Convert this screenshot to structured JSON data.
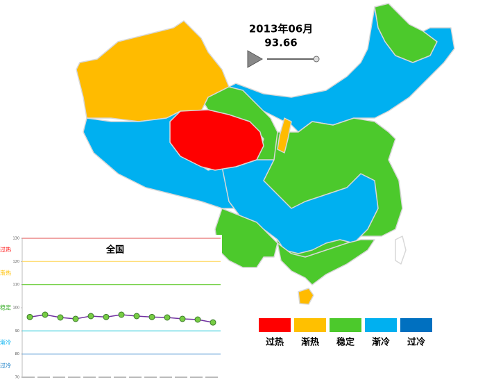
{
  "header": {
    "date": "2013年06月",
    "value": 93.66
  },
  "legend": [
    {
      "label": "过热",
      "color": "#ff0000"
    },
    {
      "label": "渐热",
      "color": "#ffc000"
    },
    {
      "label": "稳定",
      "color": "#4cc92c"
    },
    {
      "label": "渐冷",
      "color": "#00b0f0"
    },
    {
      "label": "过冷",
      "color": "#0070c0"
    }
  ],
  "chart_data": {
    "type": "line",
    "title": "全国",
    "categories": [
      null,
      null,
      null,
      null,
      null,
      null,
      null,
      null,
      null,
      null,
      null,
      null,
      null
    ],
    "series": [
      {
        "color": "#7030a0",
        "marker_color": "#77cc44",
        "values": [
          96,
          97,
          95.8,
          95.2,
          96.4,
          96,
          97,
          96.4,
          96,
          95.8,
          95.2,
          94.9,
          93.66
        ]
      }
    ],
    "ylim": [
      70,
      130
    ],
    "yticks": [
      70,
      80,
      90,
      100,
      110,
      120,
      130
    ],
    "thresholds": [
      {
        "value": 130,
        "color": "#e87070"
      },
      {
        "value": 120,
        "color": "#ffd966"
      },
      {
        "value": 110,
        "color": "#66cc33"
      },
      {
        "value": 90,
        "color": "#33ccdd"
      },
      {
        "value": 80,
        "color": "#5b9bd5"
      }
    ],
    "zone_labels": [
      {
        "label": "过热",
        "color": "#ff0000"
      },
      {
        "label": "渐热",
        "color": "#ffc000"
      },
      {
        "label": "稳定",
        "color": "#33aa22"
      },
      {
        "label": "渐冷",
        "color": "#00b0f0"
      },
      {
        "label": "过冷",
        "color": "#0070c0"
      }
    ]
  }
}
